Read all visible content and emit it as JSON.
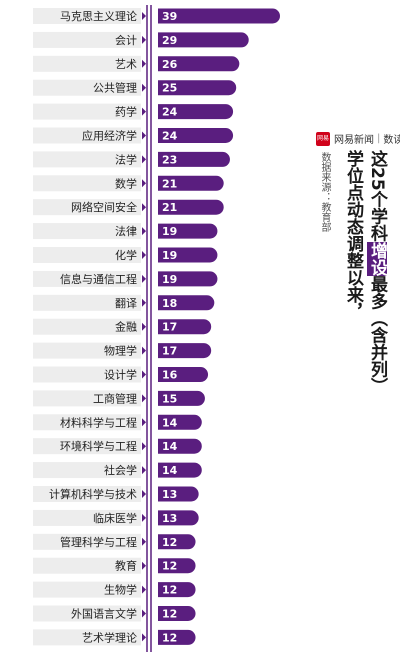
{
  "brand": {
    "name": "网易新闻",
    "section": "数读",
    "logo_text": "网易",
    "color": "#d0021b"
  },
  "title": {
    "col1_before": "这25个学科",
    "col1_highlight": "增设",
    "col1_after": "最多（含并列）",
    "col2": "学位点动态调整以来，"
  },
  "source": "数据来源：教育部",
  "colors": {
    "bar": "#5a1e7f",
    "label_bg": "#ededed",
    "highlight": "#5a1e7f"
  },
  "chart_data": {
    "type": "bar",
    "orientation": "horizontal",
    "categories": [
      "马克思主义理论",
      "会计",
      "艺术",
      "公共管理",
      "药学",
      "应用经济学",
      "法学",
      "数学",
      "网络空间安全",
      "法律",
      "化学",
      "信息与通信工程",
      "翻译",
      "金融",
      "物理学",
      "设计学",
      "工商管理",
      "材料科学与工程",
      "环境科学与工程",
      "社会学",
      "计算机科学与技术",
      "临床医学",
      "管理科学与工程",
      "教育",
      "生物学",
      "外国语言文学",
      "艺术学理论"
    ],
    "values": [
      39,
      29,
      26,
      25,
      24,
      24,
      23,
      21,
      21,
      19,
      19,
      19,
      18,
      17,
      17,
      16,
      15,
      14,
      14,
      14,
      13,
      13,
      12,
      12,
      12,
      12,
      12
    ],
    "xlim": [
      0,
      39
    ],
    "grid": false
  }
}
